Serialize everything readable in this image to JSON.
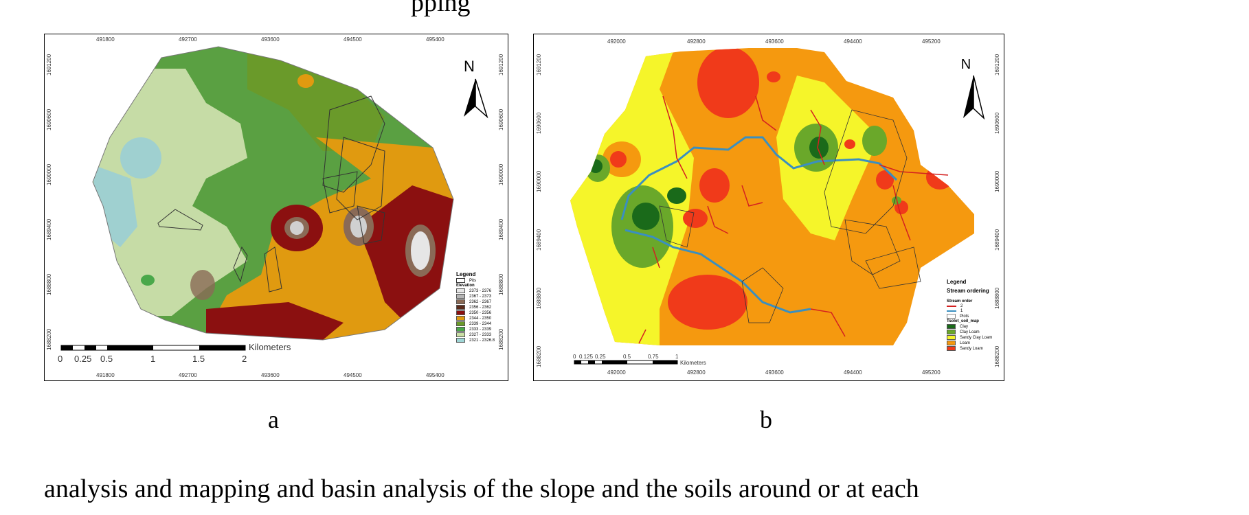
{
  "top_text": "pping",
  "panel_a": {
    "caption": "a",
    "north": "N",
    "x_ticks": [
      "491800",
      "492700",
      "493600",
      "494500",
      "495400"
    ],
    "y_ticks": [
      "1691200",
      "1690600",
      "1690000",
      "1689400",
      "1688800",
      "1688200"
    ],
    "scale_labels": [
      "0",
      "0.25",
      "0.5",
      "1",
      "1.5",
      "2"
    ],
    "scale_unit": "Kilometers",
    "legend": {
      "title": "Legend",
      "pits_label": "Pits",
      "elevation_title": "Elevation",
      "items": [
        {
          "label": "2373 - 2376",
          "color": "#e6e6e6"
        },
        {
          "label": "2367 - 2373",
          "color": "#b5b5b5"
        },
        {
          "label": "2362 - 2367",
          "color": "#8a6a56"
        },
        {
          "label": "2356 - 2362",
          "color": "#5a2a1a"
        },
        {
          "label": "2350 - 2356",
          "color": "#8b1010"
        },
        {
          "label": "2344 - 2350",
          "color": "#e09a10"
        },
        {
          "label": "2339 - 2344",
          "color": "#6a9a2a"
        },
        {
          "label": "2333 - 2339",
          "color": "#4aa84a"
        },
        {
          "label": "2327 - 2333",
          "color": "#c9dfa5"
        },
        {
          "label": "2321 - 2326.8",
          "color": "#9fd6d6"
        }
      ]
    }
  },
  "panel_b": {
    "caption": "b",
    "north": "N",
    "x_ticks": [
      "492000",
      "492800",
      "493600",
      "494400",
      "495200"
    ],
    "y_ticks": [
      "1691200",
      "1690600",
      "1690000",
      "1689400",
      "1688800",
      "1688200"
    ],
    "scale_labels": [
      "0",
      "0.125",
      "0.25",
      "0.5",
      "0.75",
      "1"
    ],
    "scale_unit": "Kilometers",
    "legend": {
      "title": "Legend",
      "subtitle": "Stream ordering",
      "stream_title": "Stream order",
      "streams": [
        {
          "label": "2",
          "color": "#d42020"
        },
        {
          "label": "1",
          "color": "#3a8fc0"
        }
      ],
      "plots_label": "Plots",
      "soil_title": "Tsolot_soil_map",
      "soil_items": [
        {
          "label": "Clay",
          "color": "#1a6a1a"
        },
        {
          "label": "Clay Loam",
          "color": "#6aa82a"
        },
        {
          "label": "Sandy Clay Loam",
          "color": "#f5f52a"
        },
        {
          "label": "Loam",
          "color": "#f5990f"
        },
        {
          "label": "Sandy Loam",
          "color": "#f03a1a"
        }
      ]
    }
  },
  "bottom_text": "analysis and mapping and basin analysis of the slope and the soils around or at each"
}
